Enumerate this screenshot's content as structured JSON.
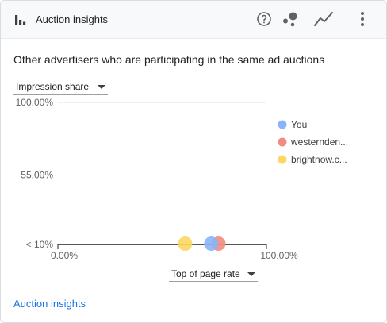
{
  "header": {
    "title": "Auction insights",
    "title_icon": "bar-chart-icon",
    "actions": [
      {
        "name": "help-button",
        "icon": "help-circle-icon"
      },
      {
        "name": "bubble-chart-button",
        "icon": "bubble-chart-icon"
      },
      {
        "name": "line-chart-button",
        "icon": "line-chart-icon"
      },
      {
        "name": "more-options-button",
        "icon": "more-vert-icon"
      }
    ]
  },
  "subtitle": "Other advertisers who are participating in the same ad auctions",
  "metric_selector": {
    "label": "Impression share"
  },
  "x_axis_selector": {
    "label": "Top of page rate"
  },
  "colors": {
    "you": "#8ab4f8",
    "westernden": "#f28b82",
    "brightnow": "#fdd663",
    "link": "#1a73e8"
  },
  "chart_data": {
    "type": "scatter",
    "y_ticks": [
      "100.00%",
      "55.00%",
      "< 10%"
    ],
    "x_ticks": [
      "0.00%",
      "100.00%"
    ],
    "xlim": [
      0,
      100
    ],
    "ylim": [
      10,
      100
    ],
    "legend_position": "right",
    "series": [
      {
        "name": "You",
        "color": "#8ab4f8",
        "x": 73.5,
        "y": 10
      },
      {
        "name": "westernden...",
        "color": "#f28b82",
        "x": 77,
        "y": 10
      },
      {
        "name": "brightnow.c...",
        "color": "#fdd663",
        "x": 61,
        "y": 10
      }
    ]
  },
  "footer": {
    "link_label": "Auction insights"
  }
}
